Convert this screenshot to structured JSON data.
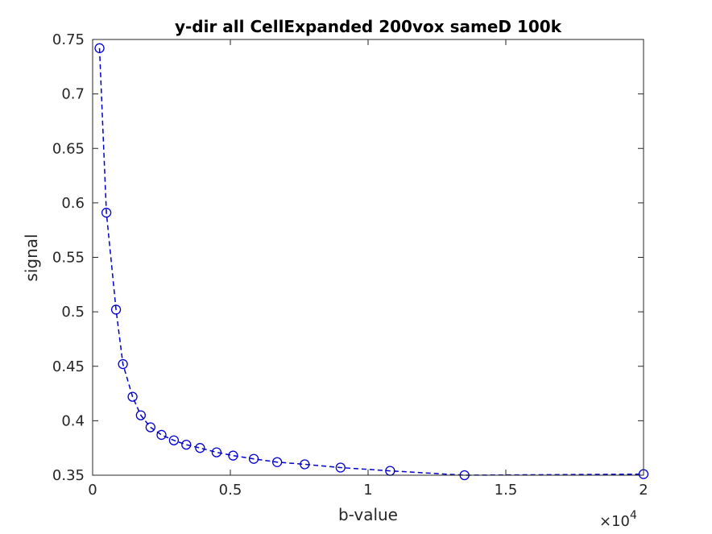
{
  "chart_data": {
    "type": "line",
    "title": "y-dir all CellExpanded 200vox sameD 100k",
    "xlabel": "b-value",
    "ylabel": "signal",
    "x_exponent_label": "×10",
    "x_exponent_power": "4",
    "xlim": [
      0,
      20000
    ],
    "ylim": [
      0.35,
      0.75
    ],
    "xticks": [
      0,
      5000,
      10000,
      15000,
      20000
    ],
    "xtick_labels": [
      "0",
      "0.5",
      "1",
      "1.5",
      "2"
    ],
    "yticks": [
      0.35,
      0.4,
      0.45,
      0.5,
      0.55,
      0.6,
      0.65,
      0.7,
      0.75
    ],
    "ytick_labels": [
      "0.35",
      "0.4",
      "0.45",
      "0.5",
      "0.55",
      "0.6",
      "0.65",
      "0.7",
      "0.75"
    ],
    "grid": false,
    "series": [
      {
        "line_style": "dashed",
        "marker": "circle",
        "color": "#0000cc",
        "x": [
          250,
          500,
          850,
          1100,
          1450,
          1750,
          2100,
          2500,
          2950,
          3400,
          3900,
          4500,
          5100,
          5850,
          6700,
          7700,
          9000,
          10800,
          13500,
          20000
        ],
        "y": [
          0.742,
          0.591,
          0.502,
          0.452,
          0.422,
          0.405,
          0.394,
          0.387,
          0.382,
          0.378,
          0.375,
          0.371,
          0.368,
          0.365,
          0.362,
          0.36,
          0.357,
          0.354,
          0.35,
          0.351
        ]
      }
    ]
  }
}
